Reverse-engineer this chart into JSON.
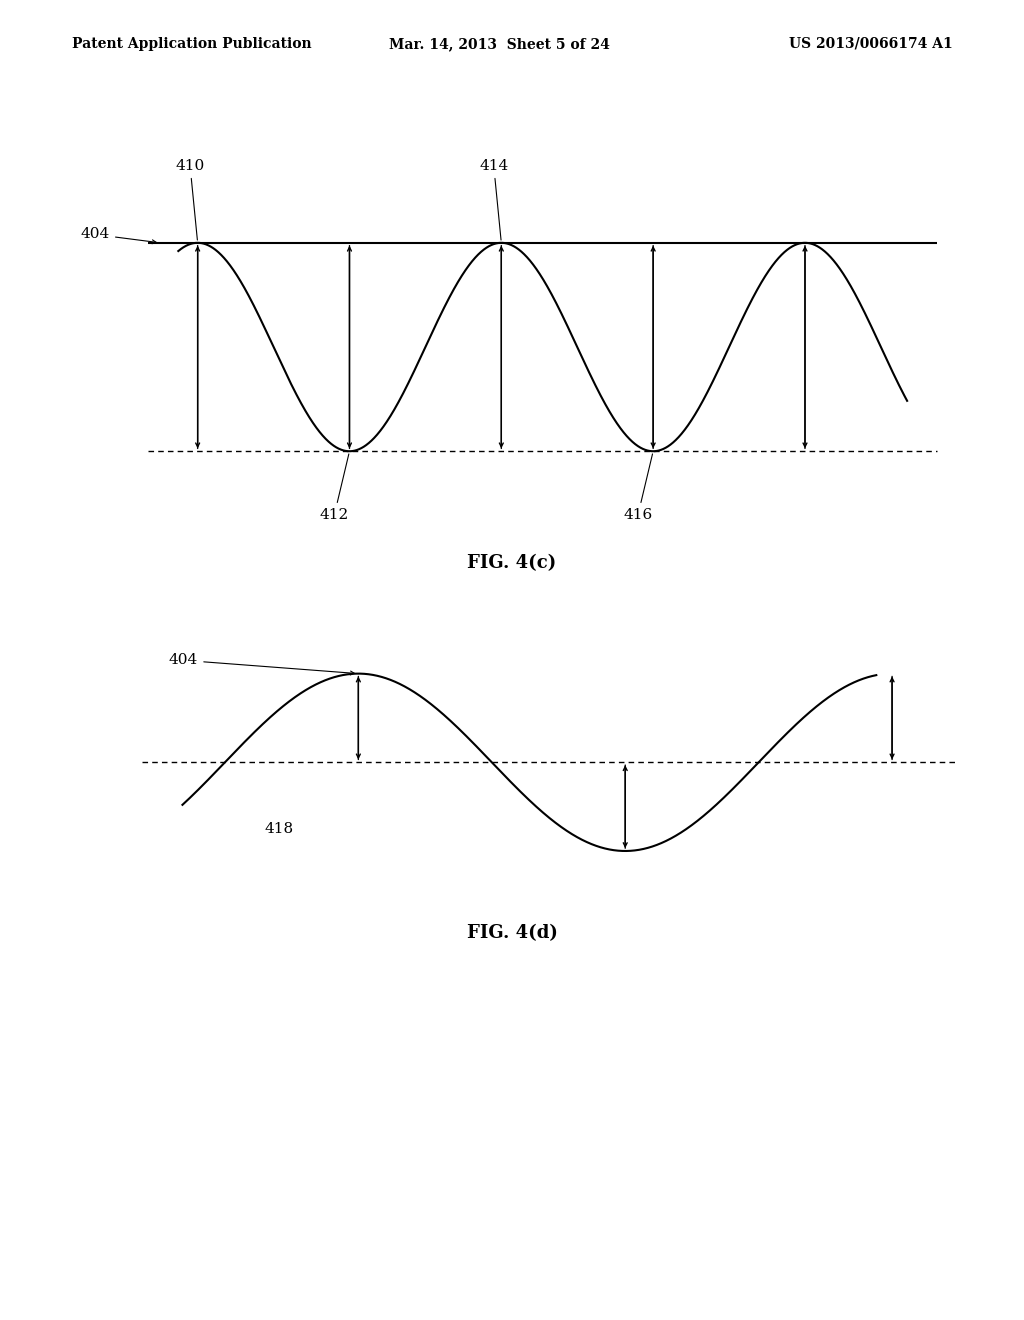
{
  "header_left": "Patent Application Publication",
  "header_center": "Mar. 14, 2013  Sheet 5 of 24",
  "header_right": "US 2013/0066174 A1",
  "header_fontsize": 10,
  "fig4c_caption": "FIG. 4(c)",
  "fig4d_caption": "FIG. 4(d)",
  "caption_fontsize": 13,
  "bg_color": "#ffffff",
  "line_color": "#000000",
  "fig4c": {
    "label_404": "404",
    "label_410": "410",
    "label_412": "412",
    "label_414": "414",
    "label_416": "416"
  },
  "fig4d": {
    "label_404": "404",
    "label_418": "418"
  }
}
